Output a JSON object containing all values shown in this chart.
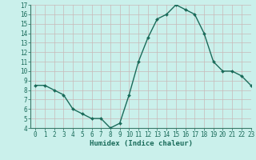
{
  "x": [
    0,
    1,
    2,
    3,
    4,
    5,
    6,
    7,
    8,
    9,
    10,
    11,
    12,
    13,
    14,
    15,
    16,
    17,
    18,
    19,
    20,
    21,
    22,
    23
  ],
  "y": [
    8.5,
    8.5,
    8.0,
    7.5,
    6.0,
    5.5,
    5.0,
    5.0,
    4.0,
    4.5,
    7.5,
    11.0,
    13.5,
    15.5,
    16.0,
    17.0,
    16.5,
    16.0,
    14.0,
    11.0,
    10.0,
    10.0,
    9.5,
    8.5
  ],
  "line_color": "#1a6b5a",
  "marker_color": "#1a6b5a",
  "bg_color": "#caf0eb",
  "grid_major_color": "#c8b8b8",
  "grid_minor_color": "#cce8e4",
  "border_color": "#3a7a6a",
  "xlabel": "Humidex (Indice chaleur)",
  "ylim": [
    4,
    17
  ],
  "xlim": [
    -0.5,
    23
  ],
  "yticks": [
    4,
    5,
    6,
    7,
    8,
    9,
    10,
    11,
    12,
    13,
    14,
    15,
    16,
    17
  ],
  "xticks": [
    0,
    1,
    2,
    3,
    4,
    5,
    6,
    7,
    8,
    9,
    10,
    11,
    12,
    13,
    14,
    15,
    16,
    17,
    18,
    19,
    20,
    21,
    22,
    23
  ],
  "tick_label_fontsize": 5.5,
  "xlabel_fontsize": 6.5,
  "marker_size": 2.0,
  "line_width": 1.0
}
